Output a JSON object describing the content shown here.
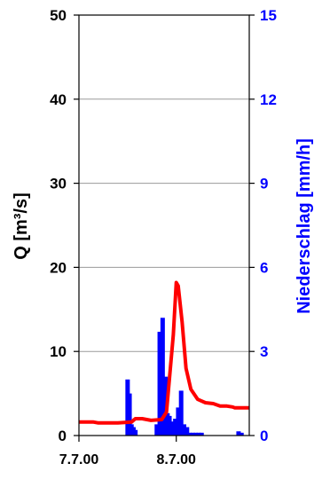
{
  "chart_data": {
    "type": "bar+line",
    "title": "",
    "x_tick_labels": [
      "7.7.00",
      "8.7.00"
    ],
    "left_axis": {
      "label": "Q [m³/s]",
      "ylim": [
        0,
        50
      ],
      "ticks": [
        0,
        10,
        20,
        30,
        40,
        50
      ],
      "color": "#000000"
    },
    "right_axis": {
      "label": "Niederschlag [mm/h]",
      "ylim": [
        0,
        15
      ],
      "ticks": [
        0,
        3,
        6,
        9,
        12,
        15
      ],
      "color": "#0000ff"
    },
    "xlim_days": [
      0,
      1.75
    ],
    "grid": "horizontal",
    "series": [
      {
        "type": "line",
        "axis": "left",
        "color": "#ff0000",
        "x": [
          0.0,
          0.15,
          0.2,
          0.4,
          0.54,
          0.58,
          0.65,
          0.74,
          0.85,
          0.9,
          0.97,
          1.0,
          1.02,
          1.06,
          1.1,
          1.15,
          1.22,
          1.3,
          1.38,
          1.45,
          1.52,
          1.58,
          1.6,
          1.75
        ],
        "y": [
          1.6,
          1.6,
          1.5,
          1.5,
          1.6,
          2.0,
          2.0,
          1.8,
          1.9,
          2.8,
          12.0,
          18.2,
          17.8,
          13.5,
          8.0,
          5.5,
          4.3,
          3.9,
          3.8,
          3.5,
          3.5,
          3.4,
          3.3,
          3.3
        ]
      },
      {
        "type": "bar",
        "axis": "right",
        "color": "#0000ff",
        "x": [
          0.5,
          0.52,
          0.54,
          0.56,
          0.58,
          0.8,
          0.83,
          0.86,
          0.89,
          0.91,
          0.93,
          0.95,
          0.97,
          0.99,
          1.02,
          1.05,
          1.08,
          1.11,
          1.14,
          1.17,
          1.2,
          1.23,
          1.26,
          1.64,
          1.67
        ],
        "values": [
          2.0,
          1.5,
          0.4,
          0.3,
          0.2,
          0.4,
          3.7,
          4.2,
          2.1,
          0.8,
          0.7,
          0.3,
          0.5,
          0.6,
          1.0,
          1.6,
          0.4,
          0.3,
          0.1,
          0.1,
          0.1,
          0.1,
          0.1,
          0.15,
          0.1
        ]
      }
    ]
  }
}
